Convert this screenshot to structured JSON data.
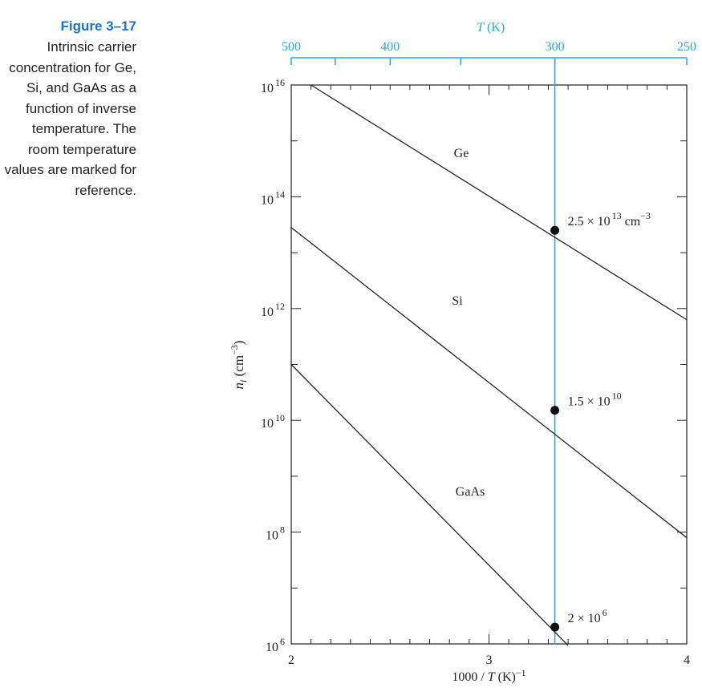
{
  "caption": {
    "figure_label": "Figure 3–17",
    "text": "Intrinsic carrier concentration for Ge, Si, and GaAs as a function of inverse temperature. The room temperature values are marked for reference."
  },
  "chart_data": {
    "type": "line",
    "x_axis": {
      "label_main": "1000 / ",
      "label_var": "T",
      "label_unit": " (K)",
      "label_exp": "−1",
      "range": [
        2,
        4
      ],
      "ticks": [
        {
          "value": 2,
          "label": "2"
        },
        {
          "value": 3,
          "label": "3"
        },
        {
          "value": 4,
          "label": "4"
        }
      ]
    },
    "top_axis": {
      "label_var": "T",
      "label_unit": " (K)",
      "ticks": [
        {
          "value": 500,
          "label": "500"
        },
        {
          "value": 400,
          "label": "400"
        },
        {
          "value": 300,
          "label": "300"
        },
        {
          "value": 250,
          "label": "250"
        }
      ]
    },
    "y_axis": {
      "label_var": "n",
      "label_sub": "i",
      "label_unit": " (cm",
      "label_exp": "−3",
      "label_close": ")",
      "scale": "log",
      "range_exp": [
        6,
        16
      ],
      "ticks": [
        {
          "exp": 16,
          "base": "10",
          "sup": "16"
        },
        {
          "exp": 14,
          "base": "10",
          "sup": "14"
        },
        {
          "exp": 12,
          "base": "10",
          "sup": "12"
        },
        {
          "exp": 10,
          "base": "10",
          "sup": "10"
        },
        {
          "exp": 8,
          "base": "10",
          "sup": "8"
        },
        {
          "exp": 6,
          "base": "10",
          "sup": "6"
        }
      ]
    },
    "series": [
      {
        "name": "Ge",
        "x": [
          2.1,
          4.0
        ],
        "log10_y": [
          16.0,
          11.8
        ]
      },
      {
        "name": "Si",
        "x": [
          2.0,
          4.0
        ],
        "log10_y": [
          13.45,
          7.9
        ]
      },
      {
        "name": "GaAs",
        "x": [
          2.0,
          3.4
        ],
        "log10_y": [
          11.0,
          5.97
        ]
      }
    ],
    "reference_line": {
      "x": 3.333
    },
    "points": [
      {
        "x": 3.333,
        "log10_y": 13.4,
        "base": "2.5 × 10",
        "sup": "13",
        "tail": " cm",
        "tail_sup": "−3"
      },
      {
        "x": 3.333,
        "log10_y": 10.18,
        "base": "1.5 × 10",
        "sup": "10",
        "tail": "",
        "tail_sup": ""
      },
      {
        "x": 3.333,
        "log10_y": 6.3,
        "base": "2 × 10",
        "sup": "6",
        "tail": "",
        "tail_sup": ""
      }
    ],
    "colors": {
      "reference": "#29a8e0",
      "curves": "#222222"
    }
  }
}
